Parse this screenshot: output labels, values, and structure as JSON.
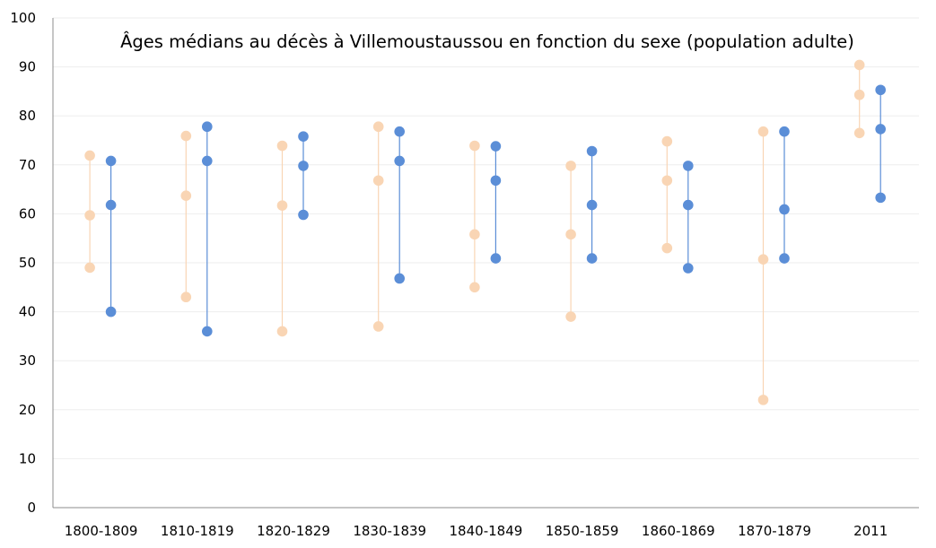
{
  "chart_data": {
    "type": "scatter",
    "subtype": "range-dot",
    "title": "Âges médians au décès à Villemoustaussou en fonction du sexe (population adulte)",
    "xlabel": "",
    "ylabel": "",
    "categories": [
      "1800-1809",
      "1810-1819",
      "1820-1829",
      "1830-1839",
      "1840-1849",
      "1850-1859",
      "1860-1869",
      "1870-1879",
      "2011"
    ],
    "ylim": [
      0,
      100
    ],
    "yticks": [
      0,
      10,
      20,
      30,
      40,
      50,
      60,
      70,
      80,
      90,
      100
    ],
    "grid": true,
    "legend": "none",
    "series": [
      {
        "color": "#f9d5b4",
        "low": [
          49,
          43,
          36,
          37,
          45,
          39,
          53,
          22,
          76.5
        ],
        "median": [
          59.7,
          63.7,
          61.7,
          66.8,
          55.8,
          55.8,
          66.8,
          50.7,
          84.3
        ],
        "high": [
          71.9,
          75.9,
          73.9,
          77.8,
          73.9,
          69.8,
          74.8,
          76.8,
          90.4
        ]
      },
      {
        "color": "#5b8ed7",
        "low": [
          40,
          36,
          59.8,
          46.8,
          50.9,
          50.9,
          48.9,
          50.9,
          63.3
        ],
        "median": [
          61.8,
          70.8,
          69.8,
          70.8,
          66.8,
          61.8,
          61.8,
          60.9,
          77.3
        ],
        "high": [
          70.8,
          77.8,
          75.8,
          76.8,
          73.8,
          72.8,
          69.8,
          76.8,
          85.3
        ]
      }
    ]
  },
  "colors": {
    "grid": "#eeeeee",
    "axis": "#8c8c8c"
  }
}
